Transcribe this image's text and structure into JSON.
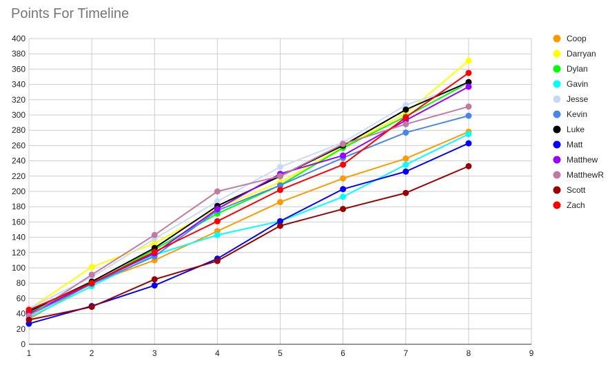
{
  "chart_data": {
    "type": "line",
    "title": "Points For Timeline",
    "xlabel": "",
    "ylabel": "",
    "xlim": [
      1,
      9
    ],
    "ylim": [
      0,
      400
    ],
    "x_ticks": [
      "1",
      "2",
      "3",
      "4",
      "5",
      "6",
      "7",
      "8",
      "9"
    ],
    "y_ticks": [
      "0",
      "20",
      "40",
      "60",
      "80",
      "100",
      "120",
      "140",
      "160",
      "180",
      "200",
      "220",
      "240",
      "260",
      "280",
      "300",
      "320",
      "340",
      "360",
      "380",
      "400"
    ],
    "grid": true,
    "legend_position": "right",
    "x": [
      1,
      2,
      3,
      4,
      5,
      6,
      7,
      8
    ],
    "series": [
      {
        "name": "Coop",
        "color": "#ff9900",
        "values": [
          33,
          80,
          110,
          148,
          186,
          217,
          243,
          278
        ]
      },
      {
        "name": "Darryan",
        "color": "#ffff00",
        "values": [
          46,
          101,
          132,
          178,
          212,
          258,
          302,
          371
        ]
      },
      {
        "name": "Dylan",
        "color": "#00ff00",
        "values": [
          42,
          79,
          124,
          171,
          208,
          257,
          298,
          342
        ]
      },
      {
        "name": "Gavin",
        "color": "#00ffff",
        "values": [
          35,
          76,
          117,
          143,
          161,
          193,
          235,
          275
        ]
      },
      {
        "name": "Jesse",
        "color": "#c9daf8",
        "values": [
          47,
          88,
          138,
          187,
          232,
          264,
          313,
          341
        ]
      },
      {
        "name": "Kevin",
        "color": "#4a86e8",
        "values": [
          38,
          79,
          115,
          175,
          208,
          244,
          277,
          299
        ]
      },
      {
        "name": "Luke",
        "color": "#000000",
        "values": [
          43,
          82,
          126,
          181,
          220,
          260,
          307,
          343
        ]
      },
      {
        "name": "Matt",
        "color": "#0000ff",
        "values": [
          27,
          50,
          77,
          112,
          161,
          203,
          226,
          263
        ]
      },
      {
        "name": "Matthew",
        "color": "#9900ff",
        "values": [
          40,
          80,
          119,
          177,
          223,
          247,
          293,
          337
        ]
      },
      {
        "name": "MatthewR",
        "color": "#c27ba0",
        "values": [
          37,
          91,
          143,
          200,
          220,
          262,
          288,
          311
        ]
      },
      {
        "name": "Scott",
        "color": "#990000",
        "values": [
          32,
          49,
          85,
          109,
          155,
          177,
          198,
          233
        ]
      },
      {
        "name": "Zach",
        "color": "#ff0000",
        "values": [
          45,
          80,
          121,
          161,
          202,
          235,
          297,
          355
        ]
      }
    ]
  }
}
